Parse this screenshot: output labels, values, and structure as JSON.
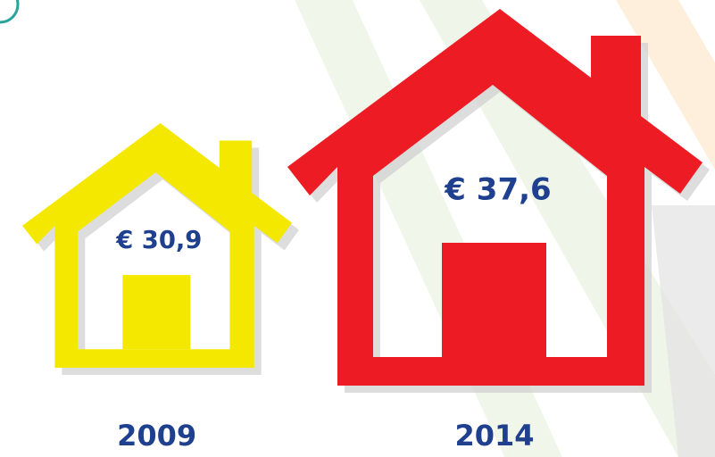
{
  "chart_data": {
    "type": "pictogram",
    "categories": [
      "2009",
      "2014"
    ],
    "values": [
      30.9,
      37.6
    ],
    "value_labels": [
      "€ 30,9",
      "€ 37,6"
    ],
    "colors": [
      "#f5e800",
      "#ed1c24"
    ]
  }
}
